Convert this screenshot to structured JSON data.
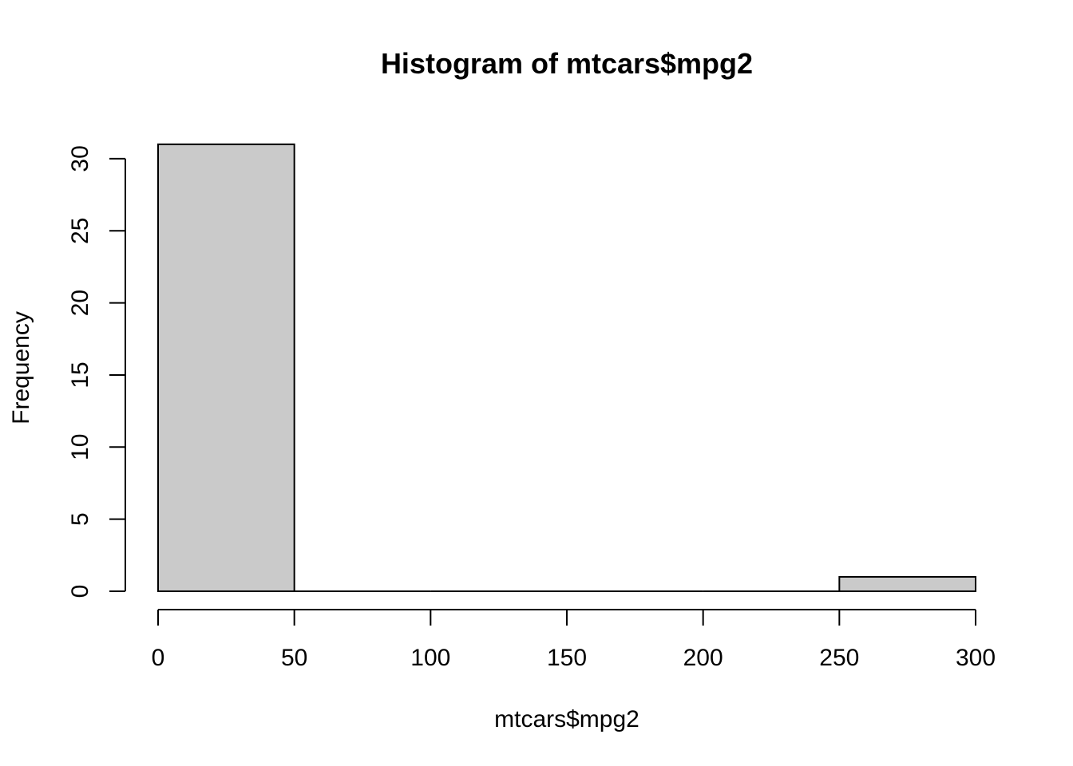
{
  "chart_data": {
    "type": "bar",
    "subtype": "histogram",
    "title": "Histogram of mtcars$mpg2",
    "xlabel": "mtcars$mpg2",
    "ylabel": "Frequency",
    "bins": [
      {
        "start": 0,
        "end": 50,
        "count": 31
      },
      {
        "start": 50,
        "end": 100,
        "count": 0
      },
      {
        "start": 100,
        "end": 150,
        "count": 0
      },
      {
        "start": 150,
        "end": 200,
        "count": 0
      },
      {
        "start": 200,
        "end": 250,
        "count": 0
      },
      {
        "start": 250,
        "end": 300,
        "count": 1
      }
    ],
    "xlim": [
      0,
      300
    ],
    "ylim": [
      0,
      31
    ],
    "x_ticks": [
      0,
      50,
      100,
      150,
      200,
      250,
      300
    ],
    "y_ticks": [
      0,
      5,
      10,
      15,
      20,
      25,
      30
    ],
    "grid": false,
    "bar_color": "#cacaca",
    "edge_color": "#000000"
  }
}
